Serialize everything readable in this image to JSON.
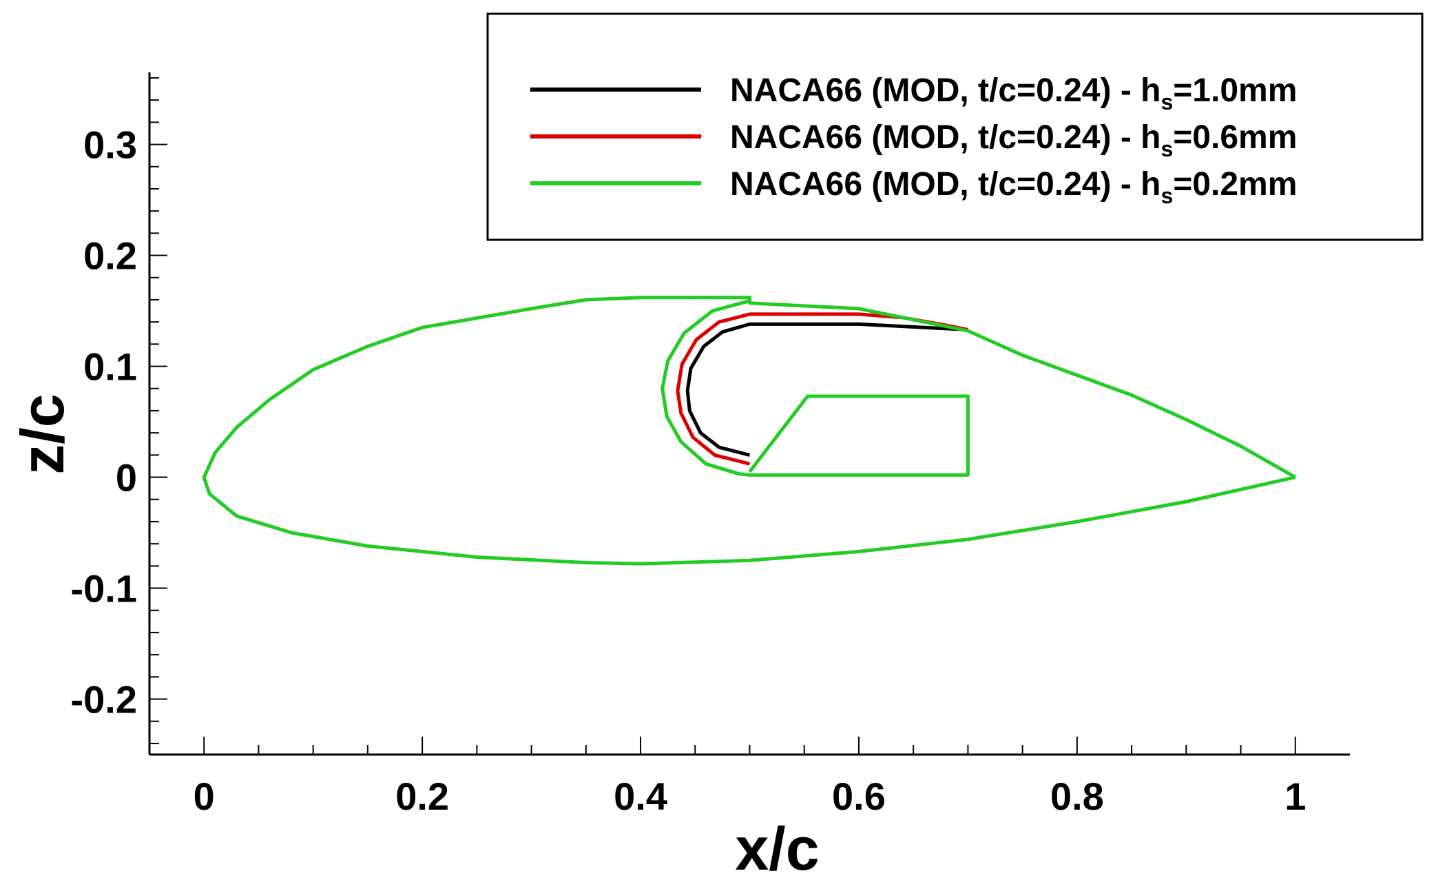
{
  "chart_data": {
    "type": "line",
    "xlabel": "x/c",
    "ylabel": "z/c",
    "xlim": [
      -0.05,
      1.05
    ],
    "ylim": [
      -0.25,
      0.365
    ],
    "x_ticks": [
      0,
      0.2,
      0.4,
      0.6,
      0.8,
      1
    ],
    "x_tick_labels": [
      "0",
      "0.2",
      "0.4",
      "0.6",
      "0.8",
      "1"
    ],
    "y_ticks": [
      -0.2,
      -0.1,
      0,
      0.1,
      0.2,
      0.3
    ],
    "y_tick_labels": [
      "-0.2",
      "-0.1",
      "0",
      "0.1",
      "0.2",
      "0.3"
    ],
    "grid": false,
    "legend": "top-right",
    "series": [
      {
        "legend_main": "NACA66 (MOD, t/c=0.24) - h",
        "legend_sub": "s",
        "legend_tail": "=1.0mm",
        "color": "#000000",
        "points": [
          [
            0.5,
            0.02
          ],
          [
            0.472,
            0.027
          ],
          [
            0.455,
            0.04
          ],
          [
            0.445,
            0.06
          ],
          [
            0.443,
            0.078
          ],
          [
            0.446,
            0.098
          ],
          [
            0.458,
            0.118
          ],
          [
            0.475,
            0.131
          ],
          [
            0.5,
            0.138
          ],
          [
            0.6,
            0.138
          ],
          [
            0.64,
            0.136
          ],
          [
            0.68,
            0.134
          ],
          [
            0.7,
            0.133
          ]
        ]
      },
      {
        "legend_main": "NACA66 (MOD, t/c=0.24) - h",
        "legend_sub": "s",
        "legend_tail": "=0.6mm",
        "color": "#dd0000",
        "points": [
          [
            0.5,
            0.012
          ],
          [
            0.468,
            0.02
          ],
          [
            0.448,
            0.036
          ],
          [
            0.437,
            0.058
          ],
          [
            0.434,
            0.078
          ],
          [
            0.438,
            0.102
          ],
          [
            0.451,
            0.124
          ],
          [
            0.472,
            0.14
          ],
          [
            0.5,
            0.147
          ],
          [
            0.6,
            0.147
          ],
          [
            0.64,
            0.144
          ],
          [
            0.68,
            0.137
          ],
          [
            0.7,
            0.133
          ]
        ]
      },
      {
        "legend_main": "NACA66 (MOD, t/c=0.24) - h",
        "legend_sub": "s",
        "legend_tail": "=0.2mm",
        "color": "#22cc22",
        "points": [
          [
            1.0,
            0.0
          ],
          [
            0.95,
            0.028
          ],
          [
            0.9,
            0.052
          ],
          [
            0.85,
            0.074
          ],
          [
            0.8,
            0.092
          ],
          [
            0.75,
            0.11
          ],
          [
            0.7,
            0.132
          ],
          [
            0.6,
            0.152
          ],
          [
            0.5,
            0.157
          ],
          [
            0.5,
            0.162
          ],
          [
            0.4,
            0.162
          ],
          [
            0.35,
            0.16
          ],
          [
            0.3,
            0.152
          ],
          [
            0.2,
            0.135
          ],
          [
            0.15,
            0.118
          ],
          [
            0.1,
            0.097
          ],
          [
            0.06,
            0.07
          ],
          [
            0.03,
            0.045
          ],
          [
            0.01,
            0.022
          ],
          [
            0.0,
            0.0
          ],
          [
            0.005,
            -0.015
          ],
          [
            0.03,
            -0.035
          ],
          [
            0.08,
            -0.05
          ],
          [
            0.15,
            -0.062
          ],
          [
            0.25,
            -0.072
          ],
          [
            0.35,
            -0.077
          ],
          [
            0.4,
            -0.078
          ],
          [
            0.5,
            -0.075
          ],
          [
            0.6,
            -0.067
          ],
          [
            0.7,
            -0.056
          ],
          [
            0.8,
            -0.04
          ],
          [
            0.9,
            -0.022
          ],
          [
            1.0,
            0.0
          ]
        ]
      },
      {
        "color": "#22cc22",
        "points": [
          [
            0.5,
            0.159
          ],
          [
            0.466,
            0.15
          ],
          [
            0.44,
            0.13
          ],
          [
            0.425,
            0.105
          ],
          [
            0.42,
            0.08
          ],
          [
            0.424,
            0.055
          ],
          [
            0.437,
            0.032
          ],
          [
            0.46,
            0.012
          ],
          [
            0.49,
            0.003
          ],
          [
            0.5,
            0.002
          ],
          [
            0.7,
            0.002
          ],
          [
            0.7,
            0.073
          ],
          [
            0.553,
            0.073
          ],
          [
            0.5,
            0.005
          ]
        ]
      }
    ]
  }
}
